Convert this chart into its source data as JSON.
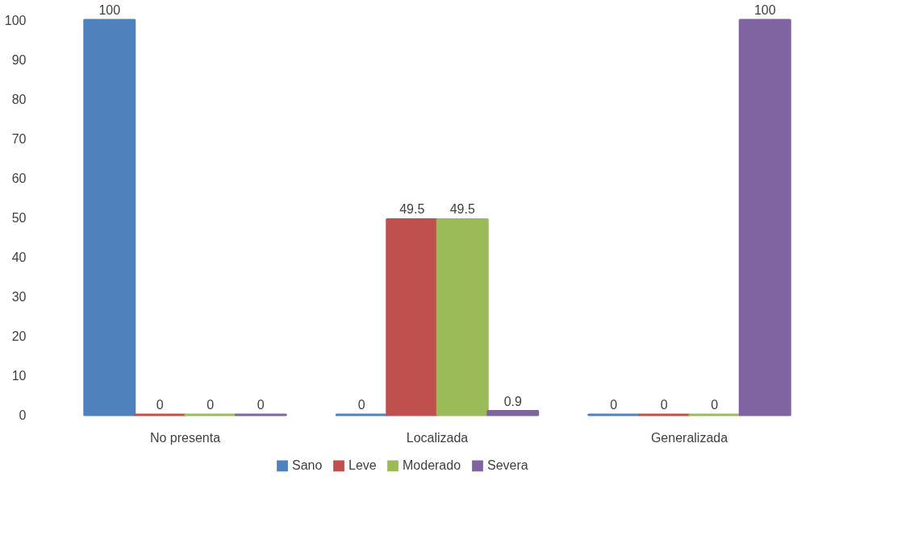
{
  "chart_data": {
    "type": "bar",
    "categories": [
      "No presenta",
      "Localizada",
      "Generalizada"
    ],
    "series": [
      {
        "name": "Sano",
        "color": "#4f81bd",
        "values": [
          100,
          0,
          0
        ]
      },
      {
        "name": "Leve",
        "color": "#c0504d",
        "values": [
          0,
          49.5,
          0
        ]
      },
      {
        "name": "Moderado",
        "color": "#9bbb59",
        "values": [
          0,
          49.5,
          0
        ]
      },
      {
        "name": "Severa",
        "color": "#8064a2",
        "values": [
          0,
          0.9,
          100
        ]
      }
    ],
    "ylim": [
      0,
      100
    ],
    "yticks": [
      0,
      10,
      20,
      30,
      40,
      50,
      60,
      70,
      80,
      90,
      100
    ],
    "grid": false,
    "legend": "bottom",
    "data_labels": true
  }
}
